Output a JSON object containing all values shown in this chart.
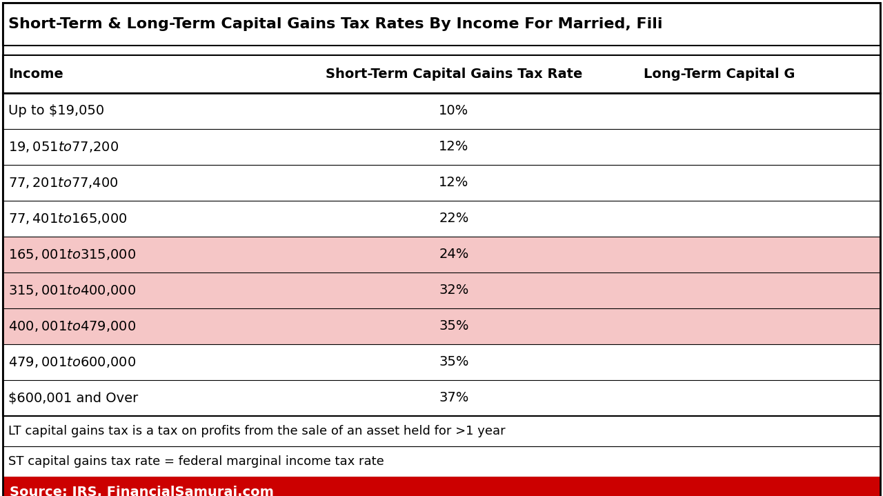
{
  "title": "Short-Term & Long-Term Capital Gains Tax Rates By Income For Married, Fili",
  "col_headers": [
    "Income",
    "Short-Term Capital Gains Tax Rate",
    "Long-Term Capital G"
  ],
  "rows": [
    [
      "Up to $19,050",
      "10%",
      ""
    ],
    [
      "$19,051 to $77,200",
      "12%",
      ""
    ],
    [
      "$77,201 to $77,400",
      "12%",
      ""
    ],
    [
      "$77,401 to $165,000",
      "22%",
      ""
    ],
    [
      "$165,001 to $315,000",
      "24%",
      ""
    ],
    [
      "$315,001 to $400,000",
      "32%",
      ""
    ],
    [
      "$400,001 to $479,000",
      "35%",
      ""
    ],
    [
      "$479,001 to $600,000",
      "35%",
      ""
    ],
    [
      "$600,001 and Over",
      "37%",
      ""
    ]
  ],
  "highlighted_rows": [
    4,
    5,
    6
  ],
  "highlight_color": "#f5c6c6",
  "footer_lines": [
    "LT capital gains tax is a tax on profits from the sale of an asset held for >1 year",
    "ST capital gains tax rate = federal marginal income tax rate"
  ],
  "source_text": "Source: IRS, FinancialSamurai.com",
  "source_bg": "#cc0000",
  "source_text_color": "#ffffff",
  "bg_color": "#ffffff",
  "border_color": "#000000",
  "title_fontsize": 16,
  "header_fontsize": 14,
  "row_fontsize": 14,
  "footer_fontsize": 13,
  "source_fontsize": 14
}
